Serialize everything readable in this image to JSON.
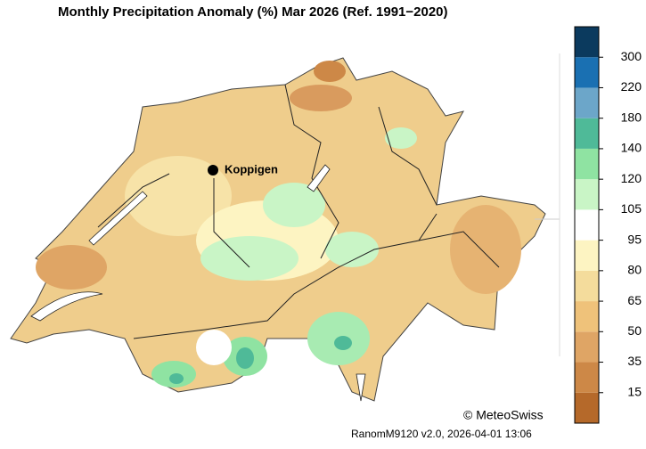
{
  "title": "Monthly Precipitation Anomaly (%) Mar 2026  (Ref. 1991−2020)",
  "places": [
    {
      "name": "Koppigen"
    }
  ],
  "legend": {
    "colors": [
      "#b5692a",
      "#cd8847",
      "#dfa565",
      "#efc27a",
      "#f4dc9c",
      "#fdf4c2",
      "#ffffff",
      "#c9f5c6",
      "#8fe3a2",
      "#4fba98",
      "#6ca6c9",
      "#1a70b2",
      "#0b3a5e"
    ],
    "ticks": [
      15,
      35,
      50,
      65,
      80,
      95,
      105,
      120,
      140,
      180,
      220,
      300
    ]
  },
  "copyright": "© MeteoSwiss",
  "footer": "RanomM9120 v2.0, 2026-04-01 13:06"
}
